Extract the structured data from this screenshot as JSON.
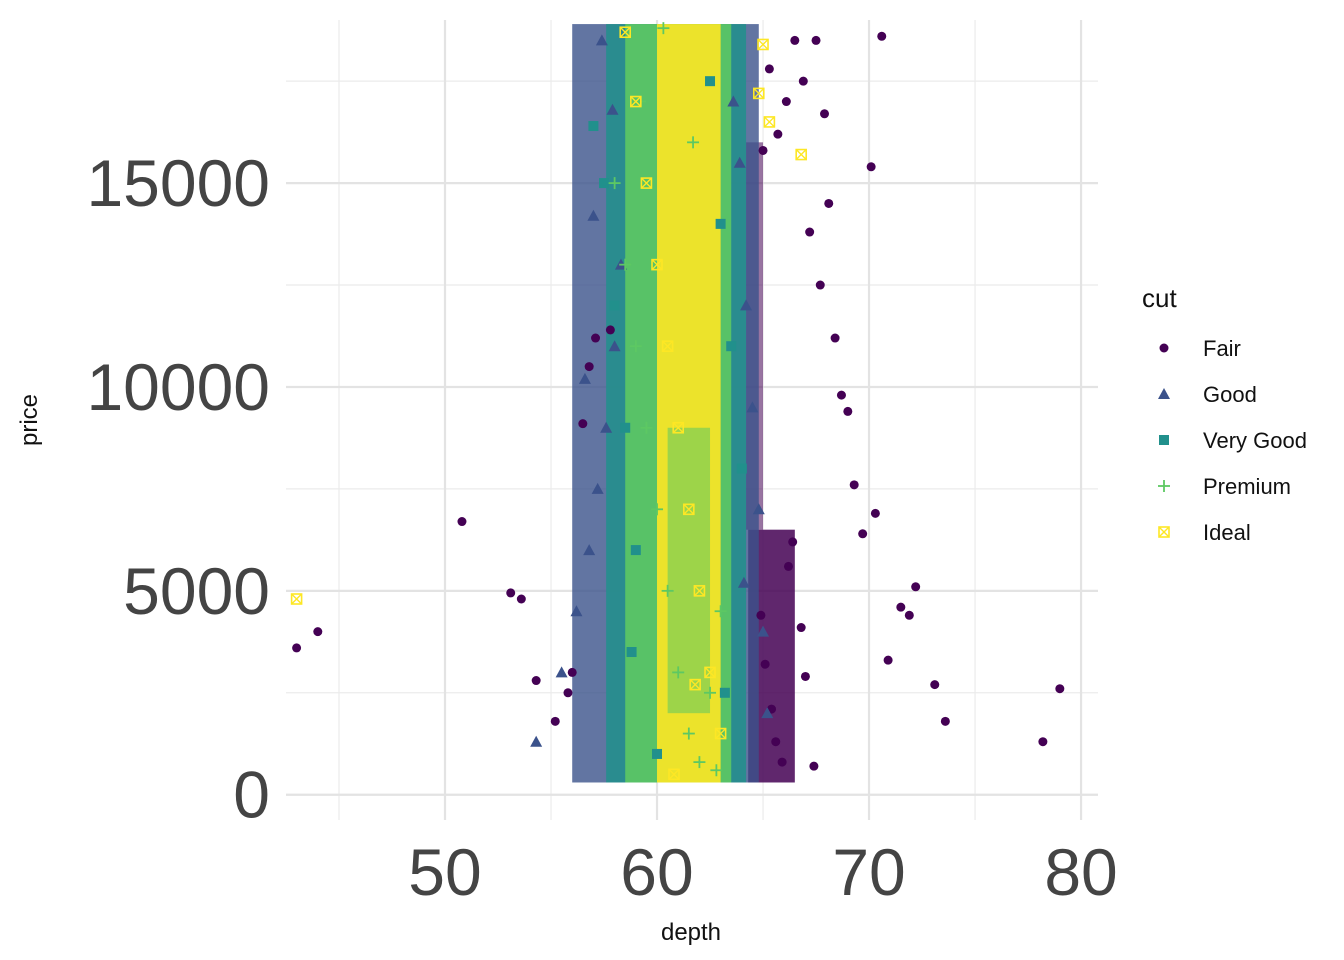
{
  "chart_data": {
    "type": "scatter",
    "xlabel": "depth",
    "ylabel": "price",
    "xlim": [
      42.5,
      80.8
    ],
    "ylim": [
      -620,
      19000
    ],
    "x_ticks": [
      50,
      60,
      70,
      80
    ],
    "x_tick_labels": [
      "50",
      "60",
      "70",
      "80"
    ],
    "x_minor_ticks": [
      45,
      55,
      65,
      75
    ],
    "y_ticks": [
      0,
      5000,
      10000,
      15000
    ],
    "y_tick_labels": [
      "0",
      "5000",
      "10000",
      "15000"
    ],
    "y_minor_ticks": [
      2500,
      7500,
      12500,
      17500
    ],
    "grid": true,
    "legend": {
      "title": "cut",
      "placement": "right",
      "entries": [
        {
          "name": "Fair",
          "color": "#440154",
          "shape": "circle"
        },
        {
          "name": "Good",
          "color": "#3B528B",
          "shape": "triangle"
        },
        {
          "name": "Very Good",
          "color": "#21908C",
          "shape": "square"
        },
        {
          "name": "Premium",
          "color": "#5DC863",
          "shape": "plus"
        },
        {
          "name": "Ideal",
          "color": "#FDE725",
          "shape": "square-cross"
        }
      ]
    },
    "series": [
      {
        "name": "Fair",
        "x": [
          43.0,
          44.0,
          50.8,
          53.1,
          53.6,
          54.3,
          55.2,
          55.8,
          56.0,
          56.5,
          56.8,
          57.1,
          57.8,
          65.0,
          65.3,
          65.7,
          66.1,
          66.5,
          66.9,
          67.2,
          67.5,
          67.7,
          67.9,
          68.1,
          68.4,
          68.7,
          69.0,
          69.3,
          69.7,
          70.1,
          70.3,
          70.6,
          70.9,
          71.5,
          71.9,
          72.2,
          73.1,
          73.6,
          78.2,
          79.0,
          64.9,
          65.1,
          65.4,
          65.6,
          65.9,
          66.2,
          66.4,
          66.8,
          67.0,
          67.4
        ],
        "y": [
          3600,
          4000,
          6700,
          4950,
          4800,
          2800,
          1800,
          2500,
          3000,
          9100,
          10500,
          11200,
          11400,
          15800,
          17800,
          16200,
          17000,
          18500,
          17500,
          13800,
          18500,
          12500,
          16700,
          14500,
          11200,
          9800,
          9400,
          7600,
          6400,
          15400,
          6900,
          18600,
          3300,
          4600,
          4400,
          5100,
          2700,
          1800,
          1300,
          2600,
          4400,
          3200,
          2100,
          1300,
          800,
          5600,
          6200,
          4100,
          2900,
          700
        ]
      },
      {
        "name": "Good",
        "x": [
          54.3,
          55.5,
          56.2,
          56.8,
          57.2,
          57.6,
          58.0,
          58.3,
          63.6,
          63.9,
          64.2,
          64.5,
          64.8,
          65.0,
          65.2,
          57.0,
          56.6,
          57.4,
          57.9,
          64.1
        ],
        "y": [
          1300,
          3000,
          4500,
          6000,
          7500,
          9000,
          11000,
          13000,
          17000,
          15500,
          12000,
          9500,
          7000,
          4000,
          2000,
          14200,
          10200,
          18500,
          16800,
          5200
        ]
      },
      {
        "name": "Very Good",
        "x": [
          57.0,
          57.5,
          58.0,
          58.5,
          59.0,
          62.5,
          63.0,
          63.5,
          64.0,
          58.8,
          63.2,
          60.0
        ],
        "y": [
          16400,
          15000,
          12000,
          9000,
          6000,
          17500,
          14000,
          11000,
          8000,
          3500,
          2500,
          1000
        ]
      },
      {
        "name": "Premium",
        "x": [
          58.0,
          58.5,
          59.0,
          59.5,
          60.0,
          60.5,
          61.0,
          61.5,
          62.0,
          62.5,
          63.0,
          59.2,
          60.3,
          61.7,
          62.8
        ],
        "y": [
          15000,
          13000,
          11000,
          9000,
          7000,
          5000,
          3000,
          1500,
          800,
          2500,
          4500,
          17000,
          18800,
          16000,
          600
        ]
      },
      {
        "name": "Ideal",
        "x": [
          43.0,
          58.5,
          59.0,
          59.5,
          60.0,
          60.5,
          61.0,
          61.5,
          62.0,
          62.5,
          63.0,
          64.8,
          65.3,
          66.8,
          65.0,
          61.8,
          60.8
        ],
        "y": [
          4800,
          18700,
          17000,
          15000,
          13000,
          11000,
          9000,
          7000,
          5000,
          3000,
          1500,
          17200,
          16500,
          15700,
          18400,
          2700,
          500
        ]
      }
    ]
  }
}
